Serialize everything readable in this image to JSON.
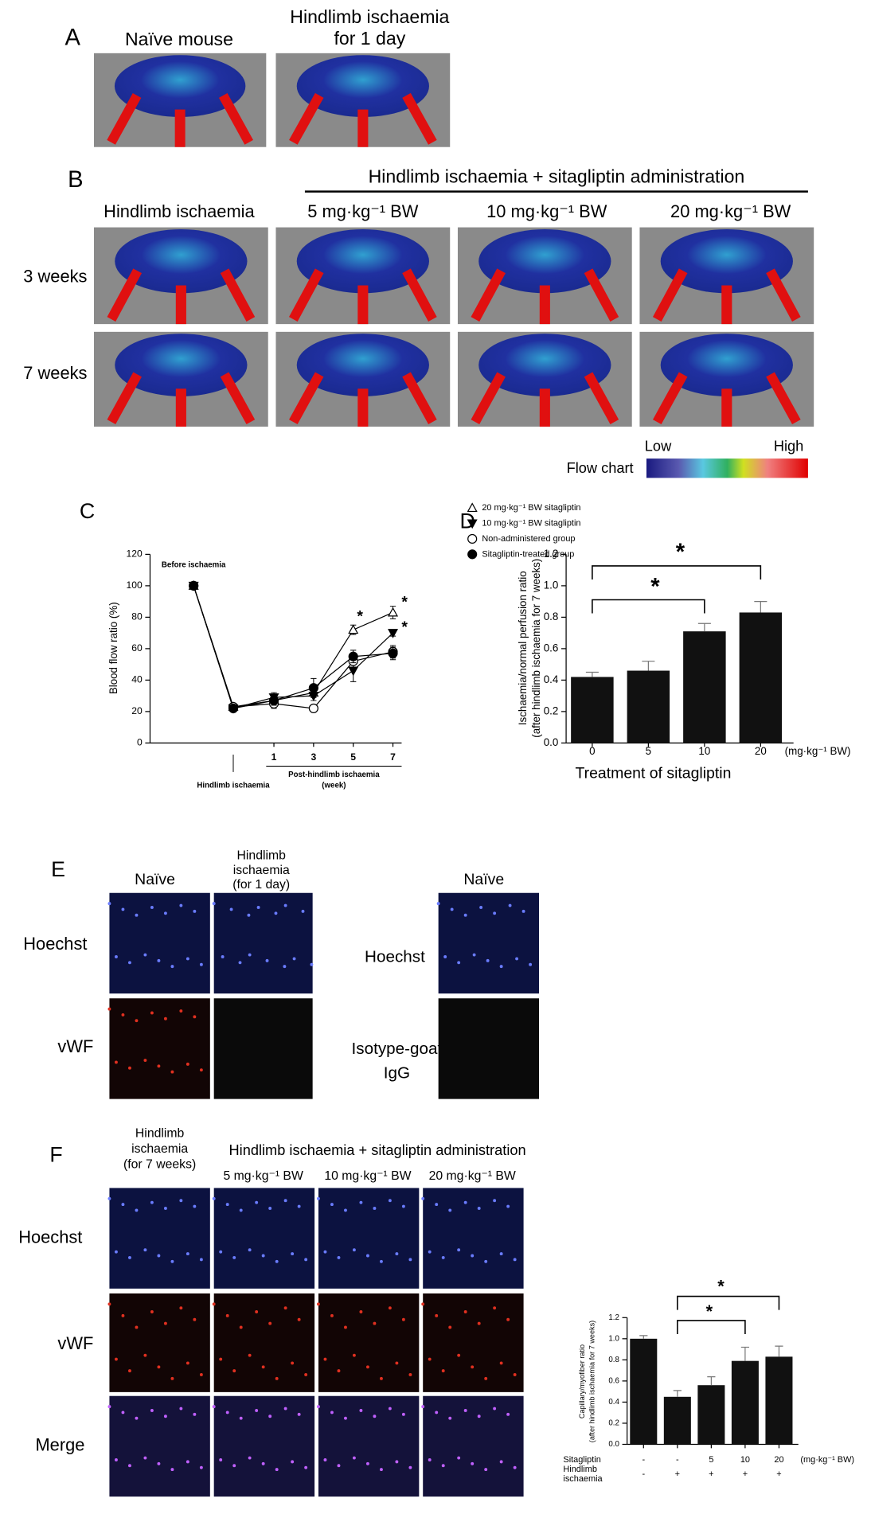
{
  "panels": {
    "A": {
      "label": "A",
      "naive": "Naïve mouse",
      "ischaemia_lines": [
        "Hindlimb ischaemia",
        "for 1 day"
      ]
    },
    "B": {
      "label": "B",
      "header": "Hindlimb ischaemia + sitagliptin administration",
      "columns": [
        "Hindlimb ischaemia",
        "5 mg·kg⁻¹ BW",
        "10 mg·kg⁻¹ BW",
        "20 mg·kg⁻¹ BW"
      ],
      "rows": [
        "3 weeks",
        "7 weeks"
      ],
      "legend": {
        "title": "Flow chart",
        "low": "Low",
        "high": "High"
      }
    },
    "C": {
      "label": "C"
    },
    "D": {
      "label": "D"
    },
    "E": {
      "label": "E",
      "col1": "Naïve",
      "col2_lines": [
        "Hindlimb",
        "ischaemia",
        "(for 1 day)"
      ],
      "rows": [
        "Hoechst",
        "vWF"
      ],
      "control_col": "Naïve",
      "control_row1": "Hoechst",
      "control_row2_lines": [
        "Isotype-goat",
        "IgG"
      ]
    },
    "F": {
      "label": "F",
      "col1_lines": [
        "Hindlimb",
        "ischaemia",
        "(for 7 weeks)"
      ],
      "header": "Hindlimb ischaemia + sitagliptin administration",
      "columns": [
        "5 mg·kg⁻¹ BW",
        "10 mg·kg⁻¹ BW",
        "20 mg·kg⁻¹ BW"
      ],
      "rows": [
        "Hoechst",
        "vWF",
        "Merge"
      ]
    }
  },
  "chart_data": [
    {
      "type": "line",
      "ylabel": "Blood flow ratio (%)",
      "xlabel": "Post-hindlimb ischaemia",
      "xlabel_unit": "(week)",
      "categories": [
        "Before ischaemia",
        "Hindlimb ischaemia",
        "1",
        "3",
        "5",
        "7"
      ],
      "ylim": [
        0,
        120
      ],
      "yticks": [
        0,
        20,
        40,
        60,
        80,
        100,
        120
      ],
      "series": [
        {
          "name": "20 mg·kg⁻¹ BW sitagliptin",
          "marker": "triangle-up-open",
          "color": "#000000",
          "values": [
            100,
            23,
            27,
            32,
            72,
            83
          ],
          "errors": [
            0,
            2,
            3,
            3,
            3,
            4
          ]
        },
        {
          "name": "10 mg·kg⁻¹ BW sitagliptin",
          "marker": "triangle-down",
          "color": "#000000",
          "values": [
            100,
            22,
            29,
            30,
            46,
            70
          ],
          "errors": [
            0,
            2,
            3,
            3,
            7,
            2
          ]
        },
        {
          "name": "Non-administered group",
          "marker": "circle-open",
          "color": "#000000",
          "values": [
            100,
            23,
            25,
            22,
            52,
            58
          ],
          "errors": [
            0,
            2,
            3,
            2,
            5,
            4
          ]
        },
        {
          "name": "Sitagliptin-treated group",
          "marker": "circle",
          "color": "#000000",
          "values": [
            100,
            22,
            27,
            35,
            55,
            57
          ],
          "errors": [
            0,
            2,
            3,
            6,
            4,
            4
          ]
        }
      ],
      "annotations": [
        "*",
        "*",
        "*"
      ]
    },
    {
      "type": "bar",
      "ylabel_lines": [
        "Ischaemia/normal perfusion ratio",
        "(after hindlimb ischaemia for 7 weeks)"
      ],
      "xlabel": "Treatment of sitagliptin",
      "x_unit": "(mg·kg⁻¹ BW)",
      "categories": [
        "0",
        "5",
        "10",
        "20"
      ],
      "values": [
        0.42,
        0.46,
        0.71,
        0.83
      ],
      "errors": [
        0.03,
        0.06,
        0.05,
        0.07
      ],
      "color": "#111111",
      "ylim": [
        0,
        1.2
      ],
      "yticks": [
        {
          "value": 0,
          "label": "0.0"
        },
        0.2,
        0.4,
        0.6,
        0.8,
        {
          "value": 1,
          "label": "1.0"
        },
        1.2
      ],
      "annotations": [
        "*",
        "*"
      ]
    },
    {
      "type": "bar",
      "ylabel_lines": [
        "Capillary/myofiber ratio",
        "(after hindlimb ischaemia for 7 weeks)"
      ],
      "values": [
        1.0,
        0.45,
        0.56,
        0.79,
        0.83
      ],
      "errors": [
        0.03,
        0.06,
        0.08,
        0.13,
        0.1
      ],
      "color": "#111111",
      "ylim": [
        0,
        1.2
      ],
      "yticks": [
        {
          "value": 0,
          "label": "0.0"
        },
        0.2,
        0.4,
        0.6,
        0.8,
        {
          "value": 1,
          "label": "1.0"
        },
        1.2
      ],
      "condition_rows": [
        {
          "label_lines": [
            "Sitagliptin"
          ],
          "values": [
            "-",
            "-",
            "5",
            "10",
            "20"
          ],
          "unit": "(mg·kg⁻¹ BW)"
        },
        {
          "label_lines": [
            "Hindlimb",
            "ischaemia"
          ],
          "values": [
            "-",
            "+",
            "+",
            "+",
            "+"
          ]
        }
      ],
      "annotations": [
        "*",
        "*"
      ]
    }
  ]
}
